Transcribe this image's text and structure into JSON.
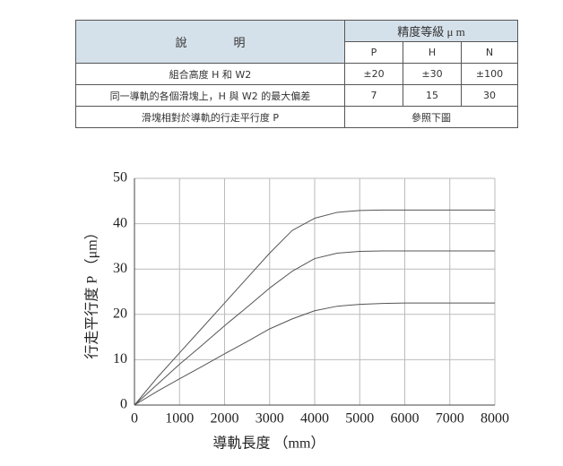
{
  "table": {
    "header": {
      "description": "說　　　　明",
      "precision": "精度等級 μ m",
      "grades": [
        "P",
        "H",
        "N"
      ]
    },
    "rows": [
      [
        "組合高度 H 和 W2",
        "±20",
        "±30",
        "±100"
      ],
      [
        "同一導軌的各個滑塊上，H 與 W2 的最大偏差",
        "7",
        "15",
        "30"
      ],
      [
        "滑塊相對於導軌的行走平行度 P",
        "參照下圖"
      ]
    ]
  },
  "chart_data": {
    "type": "line",
    "x_label": "導軌長度 （mm）",
    "y_label": "行走平行度 P （μm）",
    "x": [
      0,
      500,
      1000,
      1500,
      2000,
      2500,
      3000,
      3500,
      4000,
      4500,
      5000,
      5500,
      6000,
      6500,
      7000,
      7500,
      8000
    ],
    "series": [
      {
        "color": "#555555",
        "values": [
          0,
          6,
          11.5,
          17,
          22.5,
          28,
          33.5,
          38.5,
          41.2,
          42.5,
          42.9,
          43,
          43,
          43,
          43,
          43,
          43
        ]
      },
      {
        "color": "#555555",
        "values": [
          0,
          4.5,
          9,
          13.2,
          17.5,
          21.6,
          25.8,
          29.5,
          32.3,
          33.5,
          33.9,
          34,
          34,
          34,
          34,
          34,
          34
        ]
      },
      {
        "color": "#555555",
        "values": [
          0,
          3,
          5.8,
          8.5,
          11.3,
          14,
          16.8,
          19,
          20.8,
          21.8,
          22.2,
          22.4,
          22.5,
          22.5,
          22.5,
          22.5,
          22.5
        ]
      }
    ],
    "xlim": [
      0,
      8000
    ],
    "xticks": [
      0,
      1000,
      2000,
      3000,
      4000,
      5000,
      6000,
      7000,
      8000
    ],
    "ylim": [
      0,
      50
    ],
    "yticks": [
      0,
      10,
      20,
      30,
      40,
      50
    ],
    "grid": true
  }
}
